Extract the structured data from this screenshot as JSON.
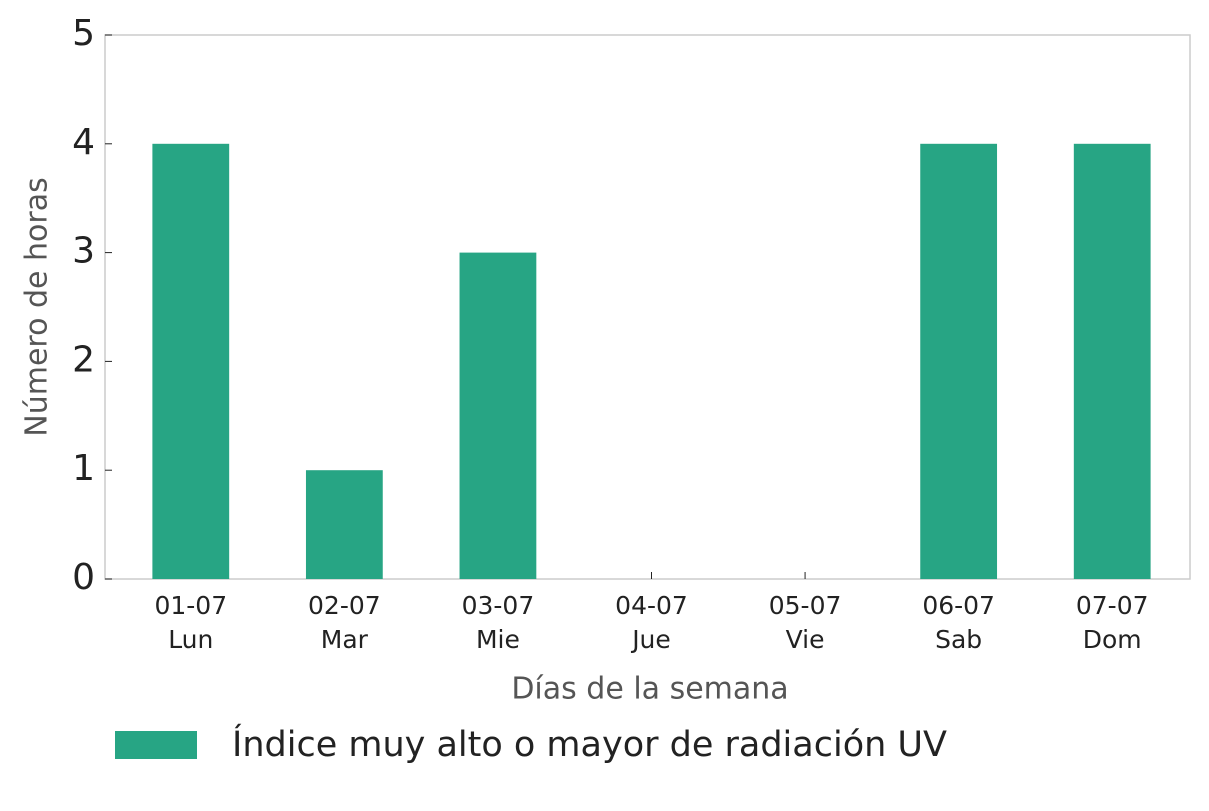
{
  "chart_data": {
    "type": "bar",
    "categories": [
      "01-07\nLun",
      "02-07\nMar",
      "03-07\nMie",
      "04-07\nJue",
      "05-07\nVie",
      "06-07\nSab",
      "07-07\nDom"
    ],
    "series": [
      {
        "name": "Índice muy alto o mayor de radiación UV",
        "color": "#27a584",
        "values": [
          4,
          1,
          3,
          0,
          0,
          4,
          4
        ]
      }
    ],
    "x_label": "Días de la semana",
    "y_label": "Número de horas",
    "ylim": [
      0,
      5
    ],
    "yticks": [
      0,
      1,
      2,
      3,
      4,
      5
    ],
    "grid": false
  }
}
